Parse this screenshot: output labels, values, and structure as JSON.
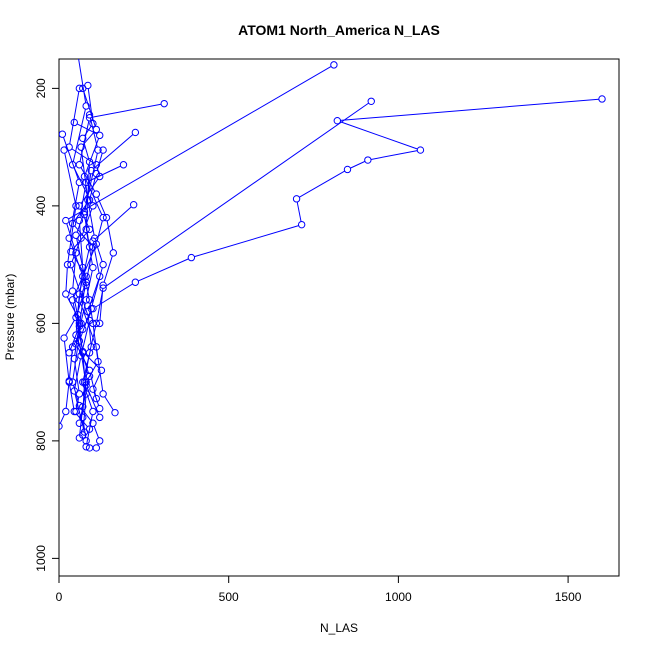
{
  "chart_data": {
    "type": "line",
    "title": "ATOM1 North_America N_LAS",
    "xlabel": "N_LAS",
    "ylabel": "Pressure (mbar)",
    "xlim": [
      0,
      1650
    ],
    "ylim": [
      1030,
      150
    ],
    "y_inverted": true,
    "x_ticks": [
      0,
      500,
      1000,
      1500
    ],
    "y_ticks": [
      200,
      400,
      600,
      800,
      1000
    ],
    "series_color": "#0000ff",
    "marker": "open-circle",
    "series": [
      {
        "points": [
          [
            1600,
            218
          ],
          [
            820,
            255
          ],
          [
            1065,
            305
          ],
          [
            910,
            322
          ],
          [
            850,
            338
          ],
          [
            700,
            388
          ],
          [
            715,
            432
          ],
          [
            390,
            488
          ],
          [
            225,
            530
          ],
          [
            100,
            575
          ],
          [
            70,
            610
          ],
          [
            40,
            640
          ],
          [
            30,
            698
          ],
          [
            20,
            750
          ],
          [
            0,
            775
          ]
        ]
      },
      {
        "points": [
          [
            920,
            222
          ],
          [
            130,
            540
          ],
          [
            110,
            600
          ],
          [
            90,
            650
          ],
          [
            75,
            700
          ],
          [
            70,
            760
          ],
          [
            80,
            800
          ],
          [
            90,
            812
          ]
        ]
      },
      {
        "points": [
          [
            810,
            160
          ],
          [
            20,
            425
          ],
          [
            50,
            480
          ],
          [
            40,
            545
          ],
          [
            60,
            600
          ],
          [
            45,
            660
          ],
          [
            60,
            720
          ],
          [
            50,
            750
          ]
        ]
      },
      {
        "points": [
          [
            310,
            226
          ],
          [
            90,
            250
          ],
          [
            60,
            330
          ],
          [
            110,
            380
          ],
          [
            140,
            420
          ],
          [
            160,
            480
          ],
          [
            130,
            535
          ],
          [
            120,
            600
          ]
        ]
      },
      {
        "points": [
          [
            190,
            330
          ],
          [
            80,
            360
          ],
          [
            60,
            425
          ],
          [
            70,
            505
          ],
          [
            55,
            585
          ],
          [
            70,
            650
          ],
          [
            80,
            720
          ],
          [
            70,
            790
          ]
        ]
      },
      {
        "points": [
          [
            225,
            275
          ],
          [
            95,
            340
          ],
          [
            75,
            415
          ],
          [
            90,
            470
          ],
          [
            60,
            550
          ],
          [
            50,
            620
          ],
          [
            90,
            690
          ],
          [
            60,
            770
          ]
        ]
      },
      {
        "points": [
          [
            220,
            398
          ],
          [
            100,
            460
          ],
          [
            120,
            520
          ],
          [
            85,
            580
          ],
          [
            95,
            640
          ],
          [
            70,
            700
          ],
          [
            100,
            750
          ],
          [
            80,
            810
          ]
        ]
      },
      {
        "points": [
          [
            130,
            305
          ],
          [
            110,
            345
          ],
          [
            90,
            390
          ],
          [
            40,
            430
          ],
          [
            100,
            470
          ],
          [
            80,
            530
          ],
          [
            60,
            560
          ],
          [
            110,
            640
          ],
          [
            130,
            720
          ],
          [
            165,
            752
          ]
        ]
      },
      {
        "points": [
          [
            60,
            200
          ],
          [
            30,
            300
          ],
          [
            110,
            330
          ],
          [
            120,
            350
          ],
          [
            60,
            400
          ],
          [
            90,
            440
          ],
          [
            35,
            478
          ],
          [
            80,
            520
          ],
          [
            60,
            605
          ],
          [
            30,
            650
          ]
        ]
      },
      {
        "points": [
          [
            85,
            195
          ],
          [
            100,
            260
          ],
          [
            70,
            285
          ],
          [
            90,
            325
          ],
          [
            80,
            440
          ],
          [
            100,
            505
          ],
          [
            80,
            560
          ],
          [
            50,
            635
          ],
          [
            90,
            680
          ],
          [
            110,
            728
          ]
        ]
      },
      {
        "points": [
          [
            15,
            305
          ],
          [
            50,
            400
          ],
          [
            25,
            500
          ],
          [
            20,
            550
          ],
          [
            65,
            600
          ],
          [
            40,
            700
          ],
          [
            60,
            740
          ],
          [
            100,
            770
          ],
          [
            120,
            800
          ],
          [
            110,
            812
          ]
        ]
      },
      {
        "points": [
          [
            10,
            278
          ],
          [
            60,
            360
          ],
          [
            30,
            455
          ],
          [
            80,
            535
          ],
          [
            50,
            590
          ],
          [
            15,
            625
          ],
          [
            30,
            700
          ],
          [
            45,
            750
          ],
          [
            90,
            780
          ]
        ]
      },
      {
        "points": [
          [
            45,
            258
          ],
          [
            120,
            280
          ],
          [
            75,
            350
          ],
          [
            130,
            420
          ],
          [
            110,
            465
          ],
          [
            70,
            520
          ],
          [
            40,
            560
          ],
          [
            70,
            648
          ],
          [
            125,
            680
          ],
          [
            100,
            712
          ],
          [
            120,
            745
          ]
        ]
      },
      {
        "points": [
          [
            90,
            245
          ],
          [
            115,
            305
          ],
          [
            75,
            410
          ],
          [
            50,
            450
          ],
          [
            90,
            560
          ],
          [
            100,
            600
          ],
          [
            115,
            665
          ],
          [
            80,
            700
          ],
          [
            70,
            742
          ],
          [
            60,
            795
          ]
        ]
      },
      {
        "points": [
          [
            70,
            200
          ],
          [
            110,
            270
          ],
          [
            65,
            300
          ],
          [
            85,
            390
          ],
          [
            105,
            455
          ],
          [
            130,
            500
          ],
          [
            95,
            575
          ],
          [
            60,
            630
          ],
          [
            80,
            705
          ],
          [
            120,
            760
          ]
        ]
      },
      {
        "points": [
          [
            55,
            140
          ],
          [
            80,
            230
          ],
          [
            40,
            330
          ],
          [
            100,
            400
          ],
          [
            65,
            455
          ],
          [
            35,
            500
          ],
          [
            90,
            595
          ],
          [
            65,
            655
          ],
          [
            45,
            715
          ],
          [
            75,
            785
          ]
        ]
      }
    ]
  }
}
